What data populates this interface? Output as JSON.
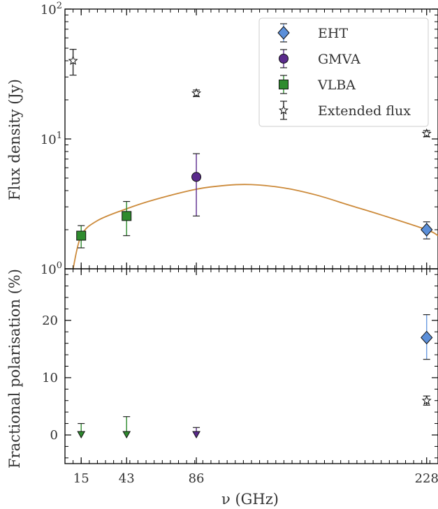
{
  "chart_data": [
    {
      "type": "scatter",
      "panel": "top",
      "xlabel": "",
      "ylabel": "Flux density (Jy)",
      "yscale": "log",
      "xlim": [
        5,
        235
      ],
      "ylim": [
        1,
        100
      ],
      "yticks": [
        {
          "value": 1,
          "base": "10",
          "exp": "0"
        },
        {
          "value": 10,
          "base": "10",
          "exp": "1"
        },
        {
          "value": 100,
          "base": "10",
          "exp": "2"
        }
      ],
      "legend_position": "top-right",
      "series": [
        {
          "name": "EHT",
          "marker": "diamond",
          "color": "#5b8fd9",
          "points": [
            {
              "x": 228,
              "y": 2.0,
              "ylo": 1.7,
              "yhi": 2.3
            }
          ]
        },
        {
          "name": "GMVA",
          "marker": "circle",
          "color": "#5a2a8c",
          "points": [
            {
              "x": 86,
              "y": 5.1,
              "ylo": 2.55,
              "yhi": 7.7
            }
          ]
        },
        {
          "name": "VLBA",
          "marker": "square",
          "color": "#2e8b2e",
          "points": [
            {
              "x": 15,
              "y": 1.8,
              "ylo": 1.45,
              "yhi": 2.15
            },
            {
              "x": 43,
              "y": 2.55,
              "ylo": 1.8,
              "yhi": 3.3
            }
          ]
        },
        {
          "name": "Extended flux",
          "marker": "star",
          "color": "#ffffff",
          "points": [
            {
              "x": 10,
              "y": 40,
              "ylo": 31,
              "yhi": 49
            },
            {
              "x": 86,
              "y": 22.5,
              "ylo": 21.2,
              "yhi": 23.8
            },
            {
              "x": 228,
              "y": 11,
              "ylo": 10.4,
              "yhi": 11.6
            }
          ]
        }
      ],
      "model_curve": {
        "color": "#cc8a3a",
        "points": [
          [
            10,
            1
          ],
          [
            15,
            1.8
          ],
          [
            25,
            2.35
          ],
          [
            43,
            2.9
          ],
          [
            60,
            3.4
          ],
          [
            86,
            4.1
          ],
          [
            105,
            4.4
          ],
          [
            120,
            4.45
          ],
          [
            140,
            4.2
          ],
          [
            160,
            3.7
          ],
          [
            180,
            3.1
          ],
          [
            200,
            2.6
          ],
          [
            228,
            2.0
          ],
          [
            235,
            1.8
          ]
        ]
      }
    },
    {
      "type": "scatter",
      "panel": "bottom",
      "xlabel": "ν (GHz)",
      "ylabel": "Fractional polarisation (%)",
      "xlim": [
        5,
        235
      ],
      "ylim": [
        -5,
        29
      ],
      "xticks": [
        15,
        43,
        86,
        228
      ],
      "yticks": [
        0,
        10,
        20
      ],
      "series": [
        {
          "name": "EHT",
          "marker": "diamond",
          "color": "#5b8fd9",
          "points": [
            {
              "x": 228,
              "y": 17,
              "ylo": 13.2,
              "yhi": 21
            }
          ]
        },
        {
          "name": "Extended flux",
          "marker": "star",
          "color": "#ffffff",
          "points": [
            {
              "x": 228,
              "y": 6,
              "ylo": 5.2,
              "yhi": 6.8
            }
          ]
        },
        {
          "name": "VLBA",
          "marker": "down-triangle",
          "color": "#2e8b2e",
          "upper_limits": [
            {
              "x": 15,
              "y": 2.0
            },
            {
              "x": 43,
              "y": 3.2
            }
          ]
        },
        {
          "name": "GMVA",
          "marker": "down-triangle",
          "color": "#5a2a8c",
          "upper_limits": [
            {
              "x": 86,
              "y": 1.3
            }
          ]
        }
      ]
    }
  ]
}
